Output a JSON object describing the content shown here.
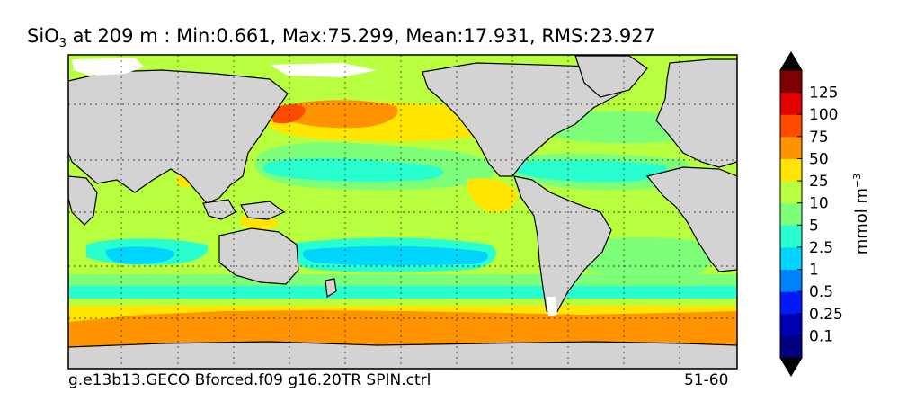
{
  "title": {
    "prefix": "SiO",
    "subscript": "3",
    "text": " at 209 m : Min:0.661, Max:75.299, Mean:17.931, RMS:23.927"
  },
  "footer": {
    "run_name": "g.e13b13.GECO Bforced.f09 g16.20TR SPIN.ctrl",
    "years": "51-60"
  },
  "colorbar": {
    "unit_base": "mmol m",
    "unit_exp": "−3",
    "labels": [
      "0.1",
      "0.25",
      "0.5",
      "1",
      "2.5",
      "5",
      "10",
      "25",
      "50",
      "75",
      "100",
      "125"
    ],
    "colors": [
      "#000080",
      "#0000b3",
      "#0019ff",
      "#0080ff",
      "#00d5ff",
      "#29ffce",
      "#7dff7a",
      "#b8ff3f",
      "#ffe500",
      "#ff9400",
      "#ff4a00",
      "#e30000",
      "#800000"
    ]
  },
  "map": {
    "land_color": "#d3d3d3",
    "ice_color": "#ffffff"
  }
}
